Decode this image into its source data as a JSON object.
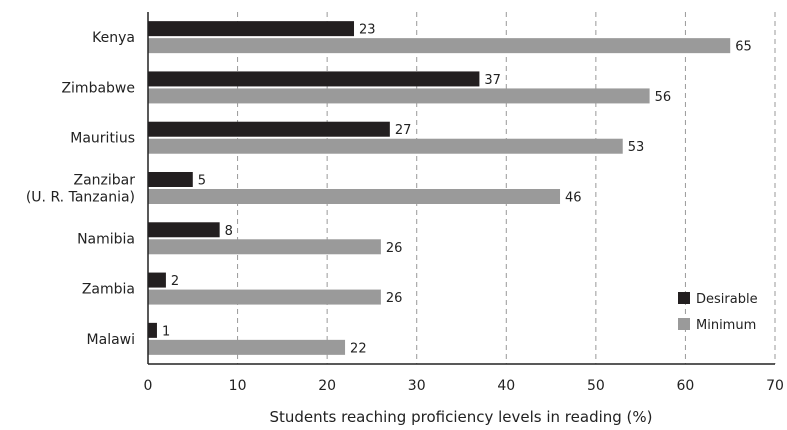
{
  "chart_data": {
    "type": "bar",
    "orientation": "horizontal",
    "categories": [
      "Kenya",
      "Zimbabwe",
      "Mauritius",
      "Zanzibar\n(U. R. Tanzania)",
      "Namibia",
      "Zambia",
      "Malawi"
    ],
    "series": [
      {
        "name": "Desirable",
        "values": [
          23,
          37,
          27,
          5,
          8,
          2,
          1
        ],
        "color": "#231f20"
      },
      {
        "name": "Minimum",
        "values": [
          65,
          56,
          53,
          46,
          26,
          26,
          22
        ],
        "color": "#9a9a9a"
      }
    ],
    "xlabel": "Students reaching proficiency levels in reading (%)",
    "xlim": [
      0,
      70
    ],
    "xticks": [
      0,
      10,
      20,
      30,
      40,
      50,
      60,
      70
    ],
    "grid": "vertical-dashed",
    "legend_position": "bottom-right"
  }
}
